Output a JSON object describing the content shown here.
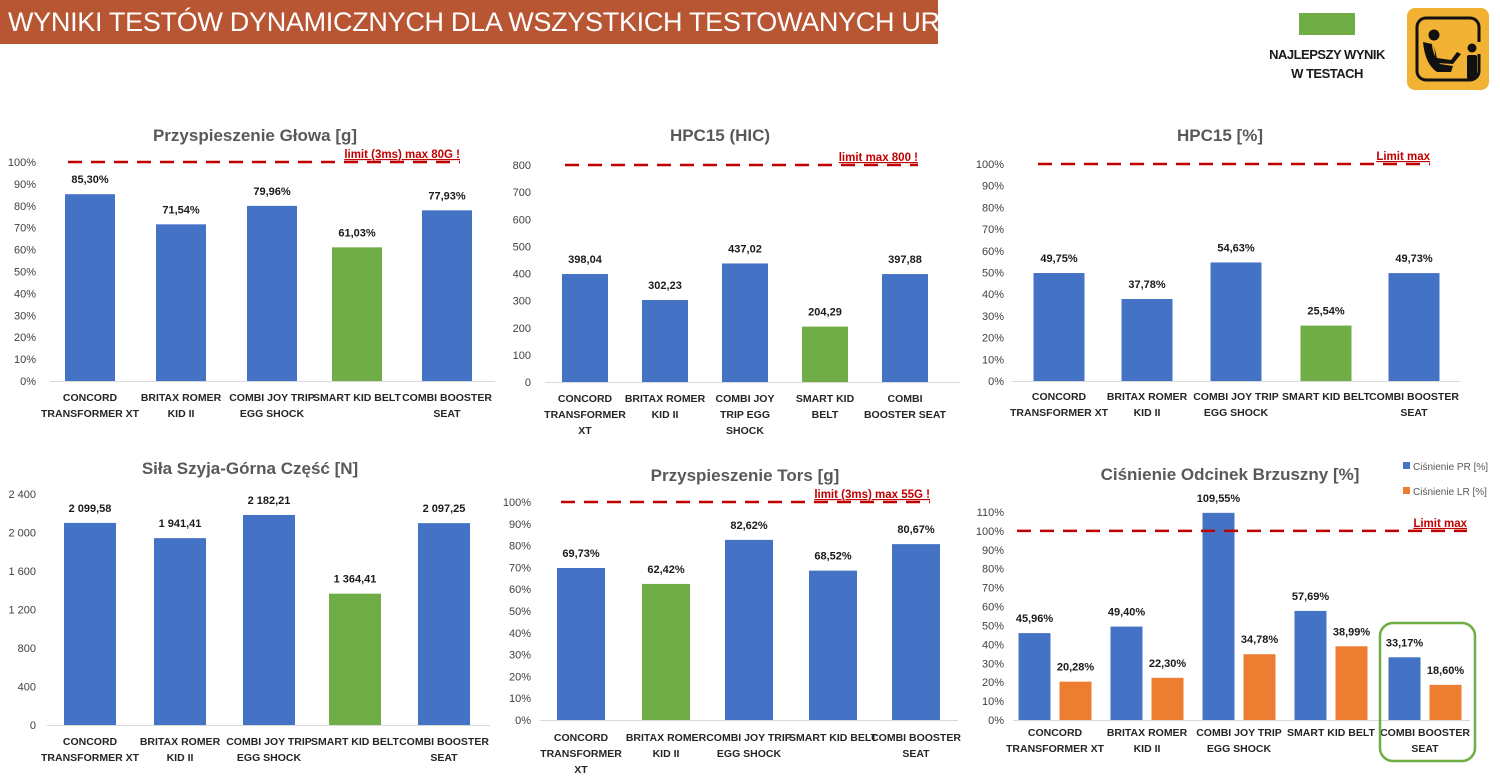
{
  "header": {
    "title": "WYNIKI TESTÓW DYNAMICZNYCH DLA WSZYSTKICH TESTOWANYCH URZĄDZEŃ",
    "legend_best_line1": "NAJLEPSZY WYNIK",
    "legend_best_line2": "W TESTACH",
    "logo_icon": "child-seat-info-icon"
  },
  "colors": {
    "banner": "#b85532",
    "bar_default": "#4472c4",
    "bar_best": "#70ad47",
    "bar_secondary": "#ed7d31",
    "limit_line": "#c00000",
    "highlight_box": "#70ad47",
    "logo_bg": "#f2b233"
  },
  "chart_data": [
    {
      "id": "head",
      "type": "bar",
      "title": "Przyspieszenie Głowa [g]",
      "categories": [
        [
          "CONCORD",
          "TRANSFORMER XT"
        ],
        [
          "BRITAX ROMER",
          "KID II"
        ],
        [
          "COMBI JOY TRIP",
          "EGG SHOCK"
        ],
        [
          "SMART KID BELT"
        ],
        [
          "COMBI BOOSTER",
          "SEAT"
        ]
      ],
      "series": [
        {
          "name": "Przyspieszenie Głowa",
          "values": [
            85.3,
            71.54,
            79.96,
            61.03,
            77.93
          ],
          "labels": [
            "85,30%",
            "71,54%",
            "79,96%",
            "61,03%",
            "77,93%"
          ]
        }
      ],
      "best_index": 3,
      "ylim": [
        0,
        100
      ],
      "yticks": [
        0,
        10,
        20,
        30,
        40,
        50,
        60,
        70,
        80,
        90,
        100
      ],
      "ytick_labels": [
        "0%",
        "10%",
        "20%",
        "30%",
        "40%",
        "50%",
        "60%",
        "70%",
        "80%",
        "90%",
        "100%"
      ],
      "limit": {
        "value": 100,
        "label": "limit (3ms) max 80G !"
      },
      "xlabel": "",
      "ylabel": "",
      "grid": false
    },
    {
      "id": "hic",
      "type": "bar",
      "title": "HPC15 (HIC)",
      "categories": [
        [
          "CONCORD",
          "TRANSFORMER",
          "XT"
        ],
        [
          "BRITAX ROMER",
          "KID II"
        ],
        [
          "COMBI JOY",
          "TRIP EGG",
          "SHOCK"
        ],
        [
          "SMART KID",
          "BELT"
        ],
        [
          "COMBI",
          "BOOSTER SEAT"
        ]
      ],
      "series": [
        {
          "name": "HPC15",
          "values": [
            398.04,
            302.23,
            437.02,
            204.29,
            397.88
          ],
          "labels": [
            "398,04",
            "302,23",
            "437,02",
            "204,29",
            "397,88"
          ]
        }
      ],
      "best_index": 3,
      "ylim": [
        0,
        800
      ],
      "yticks": [
        0,
        100,
        200,
        300,
        400,
        500,
        600,
        700,
        800
      ],
      "ytick_labels": [
        "0",
        "100",
        "200",
        "300",
        "400",
        "500",
        "600",
        "700",
        "800"
      ],
      "limit": {
        "value": 800,
        "label": "limit max 800 !"
      },
      "xlabel": "",
      "ylabel": "",
      "grid": false
    },
    {
      "id": "hpc_pct",
      "type": "bar",
      "title": "HPC15 [%]",
      "categories": [
        [
          "CONCORD",
          "TRANSFORMER XT"
        ],
        [
          "BRITAX ROMER",
          "KID II"
        ],
        [
          "COMBI JOY TRIP",
          "EGG SHOCK"
        ],
        [
          "SMART KID BELT"
        ],
        [
          "COMBI BOOSTER",
          "SEAT"
        ]
      ],
      "series": [
        {
          "name": "HPC15 %",
          "values": [
            49.75,
            37.78,
            54.63,
            25.54,
            49.73
          ],
          "labels": [
            "49,75%",
            "37,78%",
            "54,63%",
            "25,54%",
            "49,73%"
          ]
        }
      ],
      "best_index": 3,
      "ylim": [
        0,
        100
      ],
      "yticks": [
        0,
        10,
        20,
        30,
        40,
        50,
        60,
        70,
        80,
        90,
        100
      ],
      "ytick_labels": [
        "0%",
        "10%",
        "20%",
        "30%",
        "40%",
        "50%",
        "60%",
        "70%",
        "80%",
        "90%",
        "100%"
      ],
      "limit": {
        "value": 100,
        "label": "Limit max"
      },
      "xlabel": "",
      "ylabel": "",
      "grid": false
    },
    {
      "id": "neck",
      "type": "bar",
      "title": "Siła Szyja-Górna Część [N]",
      "categories": [
        [
          "CONCORD",
          "TRANSFORMER XT"
        ],
        [
          "BRITAX ROMER",
          "KID II"
        ],
        [
          "COMBI JOY TRIP",
          "EGG SHOCK"
        ],
        [
          "SMART KID BELT"
        ],
        [
          "COMBI BOOSTER",
          "SEAT"
        ]
      ],
      "series": [
        {
          "name": "Siła Szyja",
          "values": [
            2099.58,
            1941.41,
            2182.21,
            1364.41,
            2097.25
          ],
          "labels": [
            "2 099,58",
            "1 941,41",
            "2 182,21",
            "1 364,41",
            "2 097,25"
          ]
        }
      ],
      "best_index": 3,
      "ylim": [
        0,
        2400
      ],
      "yticks": [
        0,
        400,
        800,
        1200,
        1600,
        2000,
        2400
      ],
      "ytick_labels": [
        "0",
        "400",
        "800",
        "1 200",
        "1 600",
        "2 000",
        "2 400"
      ],
      "limit": null,
      "xlabel": "",
      "ylabel": "",
      "grid": false
    },
    {
      "id": "torso",
      "type": "bar",
      "title": "Przyspieszenie Tors [g]",
      "categories": [
        [
          "CONCORD",
          "TRANSFORMER",
          "XT"
        ],
        [
          "BRITAX ROMER",
          "KID II"
        ],
        [
          "COMBI JOY TRIP",
          "EGG SHOCK"
        ],
        [
          "SMART KID BELT"
        ],
        [
          "COMBI BOOSTER",
          "SEAT"
        ]
      ],
      "series": [
        {
          "name": "Przyspieszenie Tors",
          "values": [
            69.73,
            62.42,
            82.62,
            68.52,
            80.67
          ],
          "labels": [
            "69,73%",
            "62,42%",
            "82,62%",
            "68,52%",
            "80,67%"
          ]
        }
      ],
      "best_index": 1,
      "ylim": [
        0,
        100
      ],
      "yticks": [
        0,
        10,
        20,
        30,
        40,
        50,
        60,
        70,
        80,
        90,
        100
      ],
      "ytick_labels": [
        "0%",
        "10%",
        "20%",
        "30%",
        "40%",
        "50%",
        "60%",
        "70%",
        "80%",
        "90%",
        "100%"
      ],
      "limit": {
        "value": 100,
        "label": "limit (3ms) max 55G !"
      },
      "xlabel": "",
      "ylabel": "",
      "grid": false
    },
    {
      "id": "abdomen",
      "type": "bar",
      "title": "Ciśnienie Odcinek Brzuszny  [%]",
      "categories": [
        [
          "CONCORD",
          "TRANSFORMER XT"
        ],
        [
          "BRITAX ROMER",
          "KID II"
        ],
        [
          "COMBI JOY TRIP",
          "EGG SHOCK"
        ],
        [
          "SMART KID BELT"
        ],
        [
          "COMBI BOOSTER",
          "SEAT"
        ]
      ],
      "series": [
        {
          "name": "Ciśnienie PR [%]",
          "values": [
            45.96,
            49.4,
            109.55,
            57.69,
            33.17
          ],
          "labels": [
            "45,96%",
            "49,40%",
            "109,55%",
            "57,69%",
            "33,17%"
          ]
        },
        {
          "name": "Ciśnienie LR [%]",
          "values": [
            20.28,
            22.3,
            34.78,
            38.99,
            18.6
          ],
          "labels": [
            "20,28%",
            "22,30%",
            "34,78%",
            "38,99%",
            "18,60%"
          ]
        }
      ],
      "best_index": 4,
      "best_style": "outline",
      "legend_position": "top-right",
      "ylim": [
        0,
        110
      ],
      "yticks": [
        0,
        10,
        20,
        30,
        40,
        50,
        60,
        70,
        80,
        90,
        100,
        110
      ],
      "ytick_labels": [
        "0%",
        "10%",
        "20%",
        "30%",
        "40%",
        "50%",
        "60%",
        "70%",
        "80%",
        "90%",
        "100%",
        "110%"
      ],
      "limit": {
        "value": 100,
        "label": "Limit max"
      },
      "xlabel": "",
      "ylabel": "",
      "grid": false
    }
  ]
}
